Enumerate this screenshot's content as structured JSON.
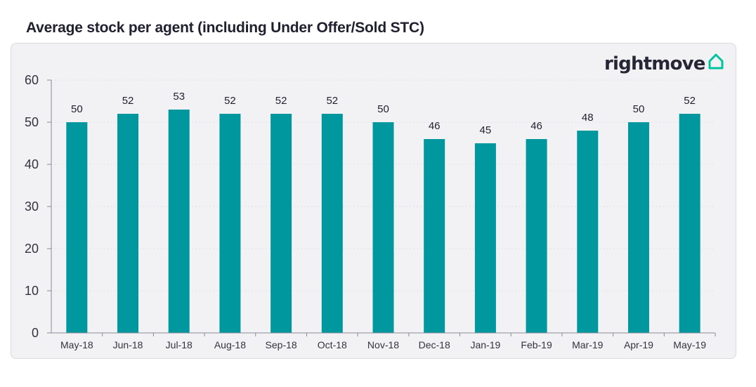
{
  "header": {
    "title": "Average stock per agent (including Under Offer/Sold STC)"
  },
  "logo": {
    "text": "rightmove",
    "icon": "house-icon",
    "icon_color": "#00c4a0"
  },
  "colors": {
    "bar": "#00979f",
    "panel": "#f2f2f5",
    "gridline": "#e3e3e8",
    "axis": "#8a8a96"
  },
  "chart_data": {
    "type": "bar",
    "title": "Average stock per agent (including Under Offer/Sold STC)",
    "xlabel": "",
    "ylabel": "",
    "categories": [
      "May-18",
      "Jun-18",
      "Jul-18",
      "Aug-18",
      "Sep-18",
      "Oct-18",
      "Nov-18",
      "Dec-18",
      "Jan-19",
      "Feb-19",
      "Mar-19",
      "Apr-19",
      "May-19"
    ],
    "values": [
      50,
      52,
      53,
      52,
      52,
      52,
      50,
      46,
      45,
      46,
      48,
      50,
      52
    ],
    "ylim": [
      0,
      60
    ],
    "yticks": [
      0,
      10,
      20,
      30,
      40,
      50,
      60
    ],
    "grid": true,
    "data_labels": true,
    "legend": "none"
  }
}
